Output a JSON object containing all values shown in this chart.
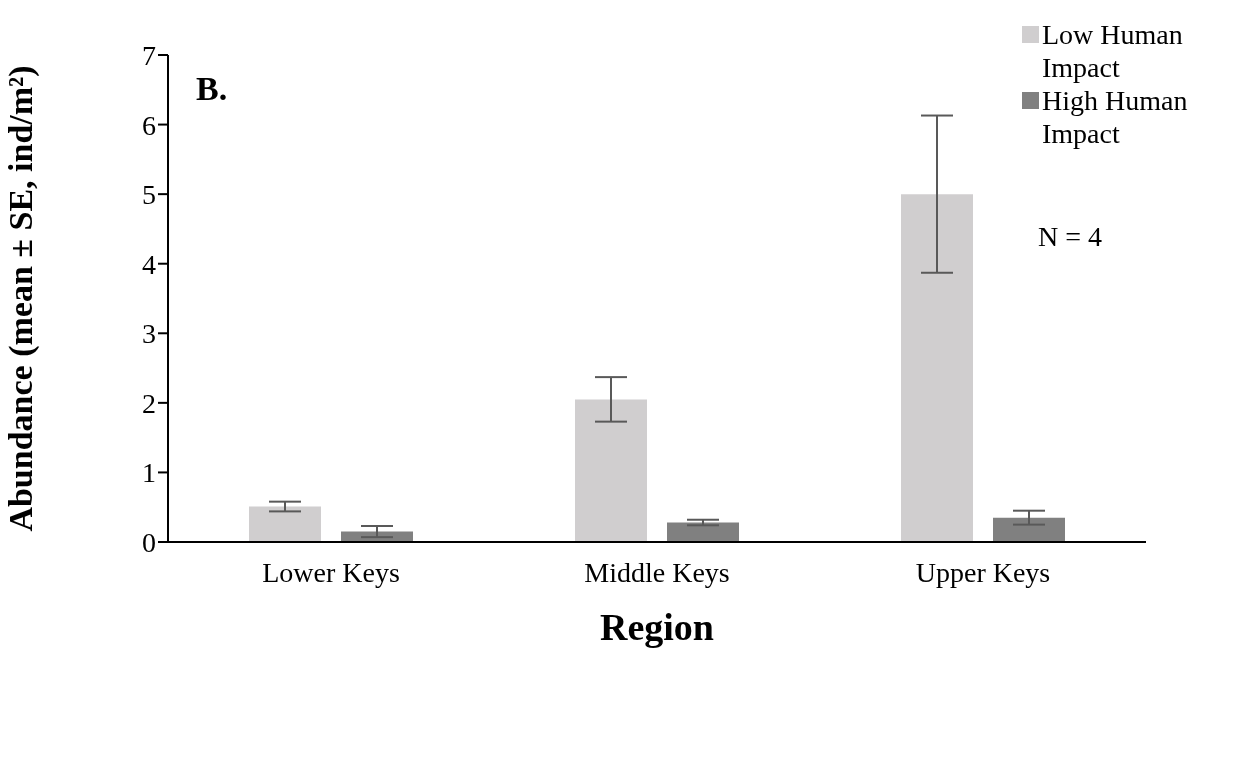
{
  "chart_data": {
    "type": "bar",
    "title": "B.",
    "xlabel": "Region",
    "ylabel": "Abundance (mean ± SE, ind/m²)",
    "categories": [
      "Lower Keys",
      "Middle Keys",
      "Upper Keys"
    ],
    "series": [
      {
        "name": "Low Human Impact",
        "color": "#d0cecf",
        "values": [
          0.51,
          2.05,
          5.0
        ],
        "errors": [
          0.07,
          0.32,
          1.13
        ]
      },
      {
        "name": "High Human Impact",
        "color": "#808080",
        "values": [
          0.15,
          0.28,
          0.35
        ],
        "errors": [
          0.08,
          0.04,
          0.1
        ]
      }
    ],
    "ylim": [
      0,
      7
    ],
    "yticks": [
      0,
      1,
      2,
      3,
      4,
      5,
      6,
      7
    ],
    "legend": "top right",
    "annotations": [
      "N = 4"
    ]
  }
}
